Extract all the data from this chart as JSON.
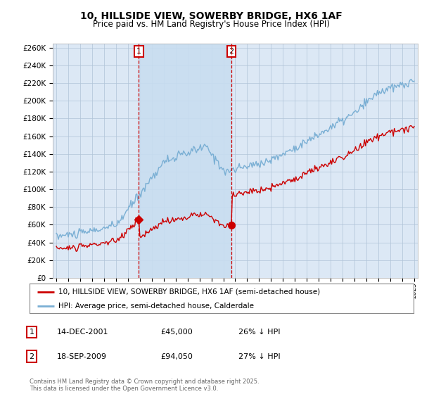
{
  "title": "10, HILLSIDE VIEW, SOWERBY BRIDGE, HX6 1AF",
  "subtitle": "Price paid vs. HM Land Registry's House Price Index (HPI)",
  "legend_label_red": "10, HILLSIDE VIEW, SOWERBY BRIDGE, HX6 1AF (semi-detached house)",
  "legend_label_blue": "HPI: Average price, semi-detached house, Calderdale",
  "annotation1_date": "14-DEC-2001",
  "annotation1_price": "£45,000",
  "annotation1_note": "26% ↓ HPI",
  "annotation2_date": "18-SEP-2009",
  "annotation2_price": "£94,050",
  "annotation2_note": "27% ↓ HPI",
  "footer": "Contains HM Land Registry data © Crown copyright and database right 2025.\nThis data is licensed under the Open Government Licence v3.0.",
  "ylim": [
    0,
    265000
  ],
  "ytick_step": 20000,
  "plot_bg_color": "#dce8f5",
  "grid_color": "#b0c4d8",
  "red_color": "#cc0000",
  "blue_color": "#7aafd4",
  "vline_color": "#cc0000",
  "shade_color": "#c8ddf0"
}
